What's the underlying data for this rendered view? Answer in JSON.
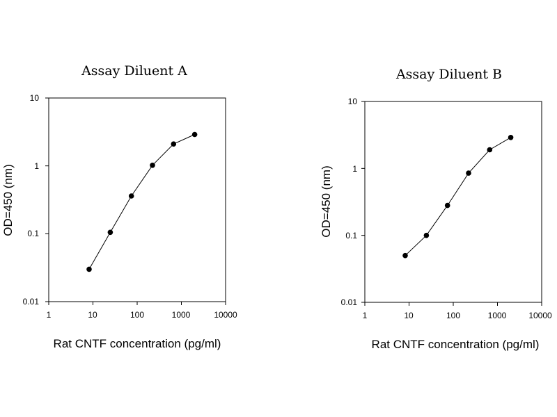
{
  "chart_data": [
    {
      "type": "line",
      "title": "Assay Diluent A",
      "xlabel": "Rat CNTF concentration (pg/ml)",
      "ylabel": "OD=450 (nm)",
      "xscale": "log",
      "yscale": "log",
      "xlim": [
        1,
        10000
      ],
      "ylim": [
        0.01,
        10
      ],
      "xticks": [
        "1",
        "10",
        "100",
        "1000",
        "10000"
      ],
      "yticks": [
        "10",
        "1",
        "0.1",
        "0.01"
      ],
      "grid": false,
      "x": [
        8.2,
        24.7,
        74.1,
        222.2,
        666.7,
        2000
      ],
      "y": [
        0.03,
        0.105,
        0.36,
        1.02,
        2.1,
        2.9
      ]
    },
    {
      "type": "line",
      "title": "Assay Diluent B",
      "xlabel": "Rat CNTF concentration (pg/ml)",
      "ylabel": "OD=450 (nm)",
      "xscale": "log",
      "yscale": "log",
      "xlim": [
        1,
        10000
      ],
      "ylim": [
        0.01,
        10
      ],
      "xticks": [
        "1",
        "10",
        "100",
        "1000",
        "10000"
      ],
      "yticks": [
        "10",
        "1",
        "0.1",
        "0.01"
      ],
      "grid": false,
      "x": [
        8.2,
        24.7,
        74.1,
        222.2,
        666.7,
        2000
      ],
      "y": [
        0.05,
        0.1,
        0.28,
        0.85,
        1.9,
        2.9
      ]
    }
  ]
}
